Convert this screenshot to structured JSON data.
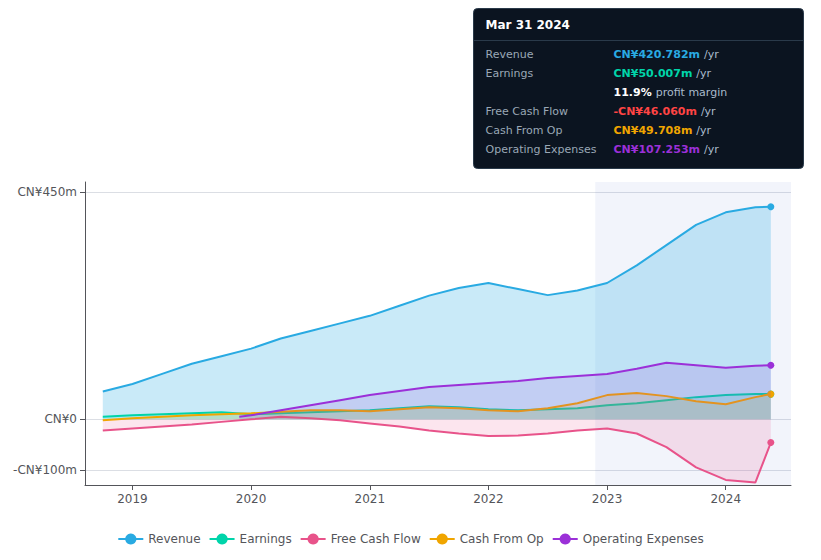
{
  "chart_data": {
    "type": "line",
    "xlim": [
      2018.6,
      2024.55
    ],
    "xticks": [
      2019,
      2020,
      2021,
      2022,
      2023,
      2024
    ],
    "ylim": [
      -130,
      470
    ],
    "yticks": [
      {
        "value": -100,
        "label": "-CN¥100m"
      },
      {
        "value": 0,
        "label": "CN¥0"
      },
      {
        "value": 450,
        "label": "CN¥450m"
      }
    ],
    "grid": true,
    "legend": "bottom",
    "shaded_range": [
      2022.9,
      2024.55
    ],
    "series": [
      {
        "name": "Revenue",
        "color": "#29aae2",
        "x": [
          2018.75,
          2019.0,
          2019.25,
          2019.5,
          2019.75,
          2020.0,
          2020.25,
          2020.5,
          2020.75,
          2021.0,
          2021.25,
          2021.5,
          2021.75,
          2022.0,
          2022.25,
          2022.5,
          2022.75,
          2023.0,
          2023.25,
          2023.5,
          2023.75,
          2024.0,
          2024.25,
          2024.38
        ],
        "values": [
          55,
          70,
          90,
          110,
          125,
          140,
          160,
          175,
          190,
          205,
          225,
          245,
          260,
          270,
          258,
          246,
          255,
          270,
          305,
          345,
          385,
          410,
          420,
          421
        ]
      },
      {
        "name": "Earnings",
        "color": "#00d4aa",
        "x": [
          2018.75,
          2019.0,
          2019.25,
          2019.5,
          2019.75,
          2020.0,
          2020.25,
          2020.5,
          2020.75,
          2021.0,
          2021.25,
          2021.5,
          2021.75,
          2022.0,
          2022.25,
          2022.5,
          2022.75,
          2023.0,
          2023.25,
          2023.5,
          2023.75,
          2024.0,
          2024.25,
          2024.38
        ],
        "values": [
          5,
          8,
          10,
          12,
          14,
          10,
          12,
          14,
          16,
          18,
          22,
          26,
          24,
          20,
          18,
          20,
          22,
          28,
          32,
          38,
          44,
          48,
          50,
          50
        ]
      },
      {
        "name": "Free Cash Flow",
        "color": "#e8538a",
        "x": [
          2018.75,
          2019.0,
          2019.25,
          2019.5,
          2019.75,
          2020.0,
          2020.25,
          2020.5,
          2020.75,
          2021.0,
          2021.25,
          2021.5,
          2021.75,
          2022.0,
          2022.25,
          2022.5,
          2022.75,
          2023.0,
          2023.25,
          2023.5,
          2023.75,
          2024.0,
          2024.25,
          2024.38
        ],
        "values": [
          -22,
          -18,
          -14,
          -10,
          -5,
          0,
          5,
          2,
          -2,
          -8,
          -14,
          -22,
          -28,
          -33,
          -32,
          -28,
          -22,
          -18,
          -28,
          -55,
          -95,
          -120,
          -125,
          -46
        ]
      },
      {
        "name": "Cash From Op",
        "color": "#f0a500",
        "x": [
          2018.75,
          2019.0,
          2019.25,
          2019.5,
          2019.75,
          2020.0,
          2020.25,
          2020.5,
          2020.75,
          2021.0,
          2021.25,
          2021.5,
          2021.75,
          2022.0,
          2022.25,
          2022.5,
          2022.75,
          2023.0,
          2023.25,
          2023.5,
          2023.75,
          2024.0,
          2024.25,
          2024.38
        ],
        "values": [
          -2,
          2,
          5,
          8,
          10,
          12,
          15,
          18,
          18,
          16,
          20,
          24,
          22,
          18,
          16,
          22,
          32,
          48,
          52,
          46,
          36,
          30,
          44,
          50
        ]
      },
      {
        "name": "Operating Expenses",
        "color": "#9b30d8",
        "x": [
          2019.9,
          2020.0,
          2020.25,
          2020.5,
          2020.75,
          2021.0,
          2021.25,
          2021.5,
          2021.75,
          2022.0,
          2022.25,
          2022.5,
          2022.75,
          2023.0,
          2023.25,
          2023.5,
          2023.75,
          2024.0,
          2024.25,
          2024.38
        ],
        "values": [
          5,
          8,
          18,
          28,
          38,
          48,
          56,
          64,
          68,
          72,
          76,
          82,
          86,
          90,
          100,
          112,
          107,
          102,
          106,
          107
        ]
      }
    ],
    "info_box": {
      "title": "Mar 31 2024",
      "rows": [
        {
          "label": "Revenue",
          "value": "CN¥420.782m",
          "unit": "/yr",
          "color": "#29aae2"
        },
        {
          "label": "Earnings",
          "value": "CN¥50.007m",
          "unit": "/yr",
          "color": "#00d4aa"
        },
        {
          "value": "11.9%",
          "unit": "profit margin",
          "color": "#ffffff"
        },
        {
          "label": "Free Cash Flow",
          "value": "-CN¥46.060m",
          "unit": "/yr",
          "color": "#ff4444"
        },
        {
          "label": "Cash From Op",
          "value": "CN¥49.708m",
          "unit": "/yr",
          "color": "#f0a500"
        },
        {
          "label": "Operating Expenses",
          "value": "CN¥107.253m",
          "unit": "/yr",
          "color": "#9b30d8"
        }
      ]
    }
  }
}
